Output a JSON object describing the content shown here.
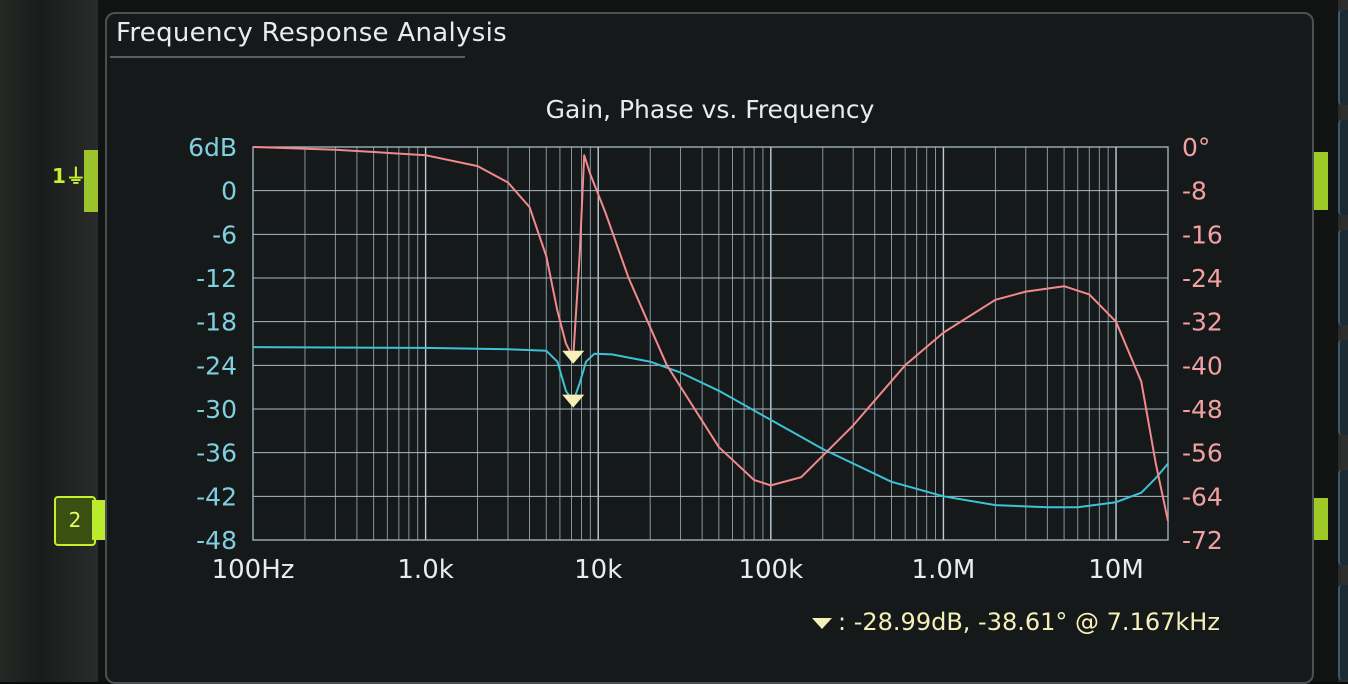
{
  "panel": {
    "title": "Frequency Response Analysis"
  },
  "channels": {
    "ch1": "1",
    "ch2": "2"
  },
  "chart_data": {
    "type": "line",
    "title": "Gain, Phase vs. Frequency",
    "x_scale": "log",
    "xlim": [
      100,
      20000000
    ],
    "x_tick_values": [
      100,
      1000,
      10000,
      100000,
      1000000,
      10000000
    ],
    "x_tick_labels": [
      "100Hz",
      "1.0k",
      "10k",
      "100k",
      "1.0M",
      "10M"
    ],
    "y_left": {
      "lim": [
        -48,
        6
      ],
      "ticks": [
        6,
        0,
        -6,
        -12,
        -18,
        -24,
        -30,
        -36,
        -42,
        -48
      ],
      "tick_labels": [
        "6dB",
        "0",
        "-6",
        "-12",
        "-18",
        "-24",
        "-30",
        "-36",
        "-42",
        "-48"
      ]
    },
    "y_right": {
      "lim": [
        -72,
        0
      ],
      "ticks": [
        0,
        -8,
        -16,
        -24,
        -32,
        -40,
        -48,
        -56,
        -64,
        -72
      ],
      "tick_labels": [
        "0°",
        "-8",
        "-16",
        "-24",
        "-32",
        "-40",
        "-48",
        "-56",
        "-64",
        "-72"
      ]
    },
    "grid": true,
    "series": [
      {
        "axis": "left",
        "color": "#3cc3d6",
        "x": [
          100,
          1000,
          3000,
          5000,
          5800,
          6500,
          7167,
          7800,
          8500,
          9500,
          12000,
          20000,
          30000,
          50000,
          100000,
          200000,
          500000,
          1000000,
          2000000,
          4000000,
          6000000,
          10000000,
          14000000,
          17000000,
          20000000
        ],
        "y": [
          -21.5,
          -21.6,
          -21.8,
          -22.0,
          -23.5,
          -27.5,
          -28.99,
          -26.5,
          -23.5,
          -22.4,
          -22.5,
          -23.5,
          -25.0,
          -27.5,
          -31.5,
          -35.5,
          -40.0,
          -42.0,
          -43.2,
          -43.5,
          -43.5,
          -42.8,
          -41.5,
          -39.5,
          -37.5
        ]
      },
      {
        "axis": "right",
        "color": "#f2898d",
        "x": [
          100,
          300,
          1000,
          2000,
          3000,
          4000,
          5000,
          5800,
          6500,
          7167,
          7800,
          8300,
          9000,
          11000,
          15000,
          25000,
          50000,
          80000,
          100000,
          150000,
          300000,
          600000,
          1000000,
          2000000,
          3000000,
          5000000,
          7000000,
          10000000,
          14000000,
          17000000,
          20000000
        ],
        "y": [
          0.0,
          -0.5,
          -1.5,
          -3.5,
          -6.5,
          -11.0,
          -20.0,
          -30.0,
          -36.0,
          -38.61,
          -20.0,
          -1.5,
          -5.0,
          -12.0,
          -24.0,
          -40.0,
          -55.0,
          -61.0,
          -62.0,
          -60.5,
          -51.0,
          -40.0,
          -34.0,
          -28.0,
          -26.5,
          -25.5,
          -27.0,
          -32.0,
          -43.0,
          -58.0,
          -68.5
        ]
      }
    ],
    "markers": [
      {
        "x": 7167,
        "y_gain": -28.99,
        "y_phase": -38.61
      }
    ],
    "readout": ":  -28.99dB, -38.61° @ 7.167kHz"
  }
}
